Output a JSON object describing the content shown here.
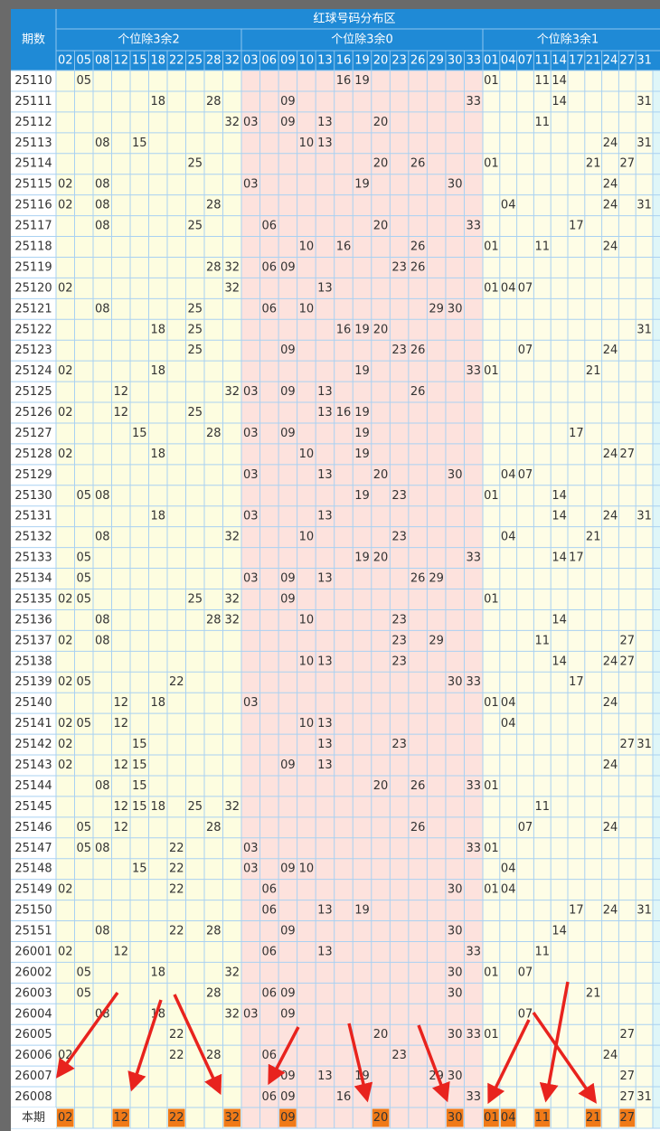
{
  "header": {
    "title": "红球号码分布区",
    "issue_label": "期数"
  },
  "groups": [
    {
      "name": "个位除3余2",
      "numbers": [
        "02",
        "05",
        "08",
        "12",
        "15",
        "18",
        "22",
        "25",
        "28",
        "32"
      ]
    },
    {
      "name": "个位除3余0",
      "numbers": [
        "03",
        "06",
        "09",
        "10",
        "13",
        "16",
        "19",
        "20",
        "23",
        "26",
        "29",
        "30",
        "33"
      ]
    },
    {
      "name": "个位除3余1",
      "numbers": [
        "01",
        "04",
        "07",
        "11",
        "14",
        "17",
        "21",
        "24",
        "27",
        "31"
      ]
    }
  ],
  "rows": [
    {
      "issue": "25110",
      "numbers": [
        "05",
        "16",
        "19",
        "01",
        "11",
        "14"
      ]
    },
    {
      "issue": "25111",
      "numbers": [
        "18",
        "28",
        "09",
        "33",
        "14",
        "31"
      ]
    },
    {
      "issue": "25112",
      "numbers": [
        "32",
        "03",
        "09",
        "13",
        "20",
        "11"
      ]
    },
    {
      "issue": "25113",
      "numbers": [
        "08",
        "15",
        "10",
        "13",
        "24",
        "31"
      ]
    },
    {
      "issue": "25114",
      "numbers": [
        "25",
        "20",
        "26",
        "01",
        "21",
        "27"
      ]
    },
    {
      "issue": "25115",
      "numbers": [
        "02",
        "08",
        "03",
        "19",
        "30",
        "24"
      ]
    },
    {
      "issue": "25116",
      "numbers": [
        "02",
        "08",
        "28",
        "04",
        "24",
        "31"
      ]
    },
    {
      "issue": "25117",
      "numbers": [
        "08",
        "25",
        "06",
        "20",
        "33",
        "17"
      ]
    },
    {
      "issue": "25118",
      "numbers": [
        "10",
        "16",
        "26",
        "01",
        "11",
        "24"
      ]
    },
    {
      "issue": "25119",
      "numbers": [
        "28",
        "32",
        "06",
        "09",
        "23",
        "26"
      ]
    },
    {
      "issue": "25120",
      "numbers": [
        "02",
        "32",
        "13",
        "01",
        "04",
        "07"
      ]
    },
    {
      "issue": "25121",
      "numbers": [
        "08",
        "25",
        "06",
        "10",
        "29",
        "30"
      ]
    },
    {
      "issue": "25122",
      "numbers": [
        "18",
        "25",
        "16",
        "19",
        "20",
        "31"
      ]
    },
    {
      "issue": "25123",
      "numbers": [
        "25",
        "09",
        "23",
        "26",
        "07",
        "24"
      ]
    },
    {
      "issue": "25124",
      "numbers": [
        "02",
        "18",
        "19",
        "33",
        "01",
        "21"
      ]
    },
    {
      "issue": "25125",
      "numbers": [
        "12",
        "32",
        "03",
        "09",
        "13",
        "26"
      ]
    },
    {
      "issue": "25126",
      "numbers": [
        "02",
        "12",
        "25",
        "13",
        "16",
        "19"
      ]
    },
    {
      "issue": "25127",
      "numbers": [
        "15",
        "28",
        "03",
        "09",
        "19",
        "17"
      ]
    },
    {
      "issue": "25128",
      "numbers": [
        "02",
        "18",
        "10",
        "19",
        "24",
        "27"
      ]
    },
    {
      "issue": "25129",
      "numbers": [
        "03",
        "13",
        "20",
        "30",
        "04",
        "07"
      ]
    },
    {
      "issue": "25130",
      "numbers": [
        "05",
        "08",
        "19",
        "23",
        "01",
        "14"
      ]
    },
    {
      "issue": "25131",
      "numbers": [
        "18",
        "03",
        "13",
        "14",
        "24",
        "31"
      ]
    },
    {
      "issue": "25132",
      "numbers": [
        "08",
        "32",
        "10",
        "23",
        "04",
        "21"
      ]
    },
    {
      "issue": "25133",
      "numbers": [
        "05",
        "19",
        "20",
        "33",
        "14",
        "17"
      ]
    },
    {
      "issue": "25134",
      "numbers": [
        "05",
        "03",
        "09",
        "13",
        "26",
        "29"
      ]
    },
    {
      "issue": "25135",
      "numbers": [
        "02",
        "05",
        "25",
        "32",
        "09",
        "01"
      ]
    },
    {
      "issue": "25136",
      "numbers": [
        "08",
        "28",
        "32",
        "10",
        "23",
        "14"
      ]
    },
    {
      "issue": "25137",
      "numbers": [
        "02",
        "08",
        "23",
        "29",
        "11",
        "27"
      ]
    },
    {
      "issue": "25138",
      "numbers": [
        "10",
        "13",
        "23",
        "14",
        "24",
        "27"
      ]
    },
    {
      "issue": "25139",
      "numbers": [
        "02",
        "05",
        "22",
        "30",
        "33",
        "17"
      ]
    },
    {
      "issue": "25140",
      "numbers": [
        "12",
        "18",
        "03",
        "01",
        "04",
        "24"
      ]
    },
    {
      "issue": "25141",
      "numbers": [
        "02",
        "05",
        "12",
        "10",
        "13",
        "04"
      ]
    },
    {
      "issue": "25142",
      "numbers": [
        "02",
        "15",
        "13",
        "23",
        "27",
        "31"
      ]
    },
    {
      "issue": "25143",
      "numbers": [
        "02",
        "12",
        "15",
        "09",
        "13",
        "24"
      ]
    },
    {
      "issue": "25144",
      "numbers": [
        "08",
        "15",
        "20",
        "26",
        "33",
        "01"
      ]
    },
    {
      "issue": "25145",
      "numbers": [
        "12",
        "15",
        "18",
        "25",
        "32",
        "11"
      ]
    },
    {
      "issue": "25146",
      "numbers": [
        "05",
        "12",
        "28",
        "26",
        "07",
        "24"
      ]
    },
    {
      "issue": "25147",
      "numbers": [
        "05",
        "08",
        "22",
        "03",
        "33",
        "01"
      ]
    },
    {
      "issue": "25148",
      "numbers": [
        "15",
        "22",
        "03",
        "09",
        "10",
        "04"
      ]
    },
    {
      "issue": "25149",
      "numbers": [
        "02",
        "22",
        "06",
        "30",
        "01",
        "04"
      ]
    },
    {
      "issue": "25150",
      "numbers": [
        "06",
        "13",
        "19",
        "17",
        "24",
        "31"
      ]
    },
    {
      "issue": "25151",
      "numbers": [
        "08",
        "22",
        "28",
        "09",
        "30",
        "14"
      ]
    },
    {
      "issue": "26001",
      "numbers": [
        "02",
        "12",
        "06",
        "13",
        "33",
        "11"
      ]
    },
    {
      "issue": "26002",
      "numbers": [
        "05",
        "18",
        "32",
        "30",
        "01",
        "07"
      ]
    },
    {
      "issue": "26003",
      "numbers": [
        "05",
        "28",
        "06",
        "09",
        "30",
        "21"
      ]
    },
    {
      "issue": "26004",
      "numbers": [
        "08",
        "18",
        "32",
        "03",
        "09",
        "07"
      ]
    },
    {
      "issue": "26005",
      "numbers": [
        "22",
        "20",
        "30",
        "33",
        "01",
        "27"
      ]
    },
    {
      "issue": "26006",
      "numbers": [
        "02",
        "22",
        "28",
        "06",
        "23",
        "24"
      ]
    },
    {
      "issue": "26007",
      "numbers": [
        "09",
        "13",
        "19",
        "29",
        "30",
        "27"
      ]
    },
    {
      "issue": "26008",
      "numbers": [
        "06",
        "09",
        "16",
        "33",
        "27",
        "31"
      ]
    }
  ],
  "current": {
    "label": "本期",
    "numbers": [
      "02",
      "12",
      "22",
      "32",
      "09",
      "20",
      "30",
      "01",
      "04",
      "11",
      "21",
      "27"
    ]
  }
}
